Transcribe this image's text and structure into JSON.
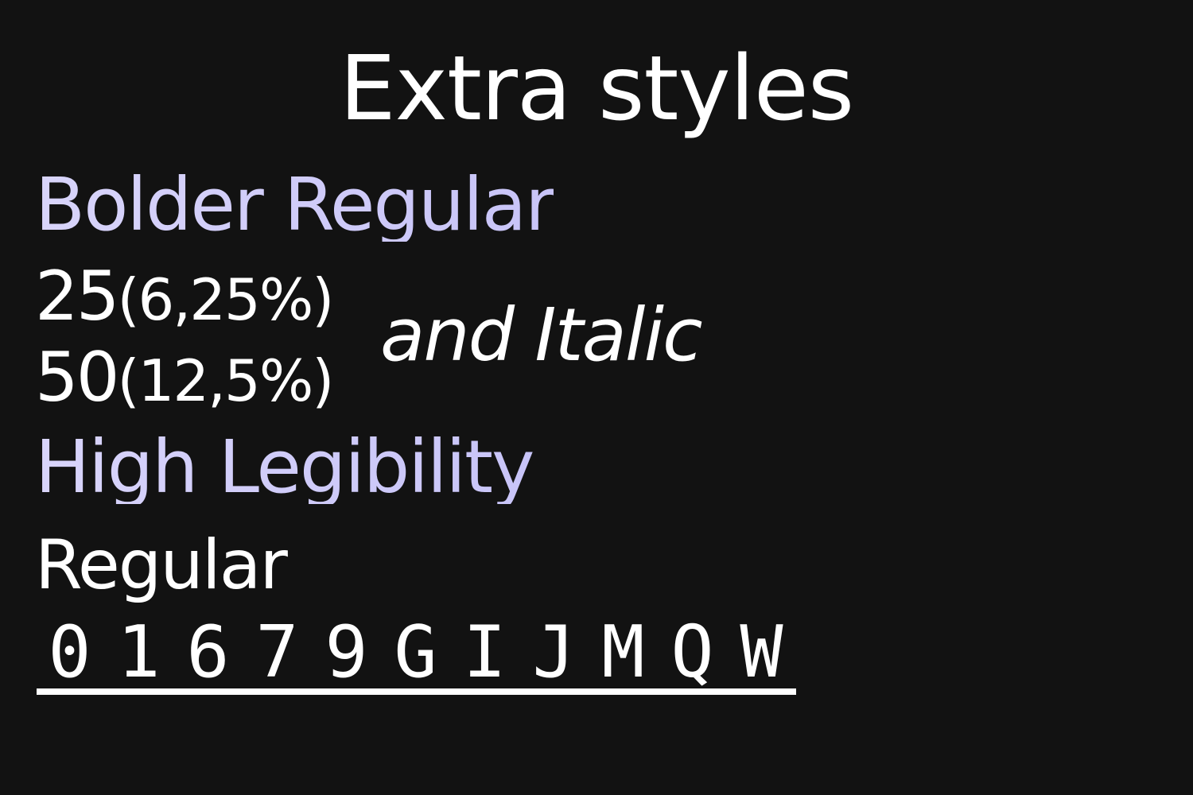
{
  "colors": {
    "background": "#121212",
    "text": "#FFFFFF",
    "accent": "#C8C4F8",
    "accent_light": "#D8D4FA"
  },
  "title": "Extra styles",
  "bolder": {
    "heading": "Bolder Regular",
    "rows": [
      {
        "value": "25",
        "percent": "(6,25%)"
      },
      {
        "value": "50",
        "percent": "(12,5%)"
      }
    ]
  },
  "italic_label": "and Italic",
  "legibility": {
    "heading": "High Legibility",
    "regular_label": "Regular",
    "glyphs": [
      "0",
      "1",
      "6",
      "7",
      "9",
      "G",
      "I",
      "J",
      "M",
      "Q",
      "W"
    ]
  }
}
